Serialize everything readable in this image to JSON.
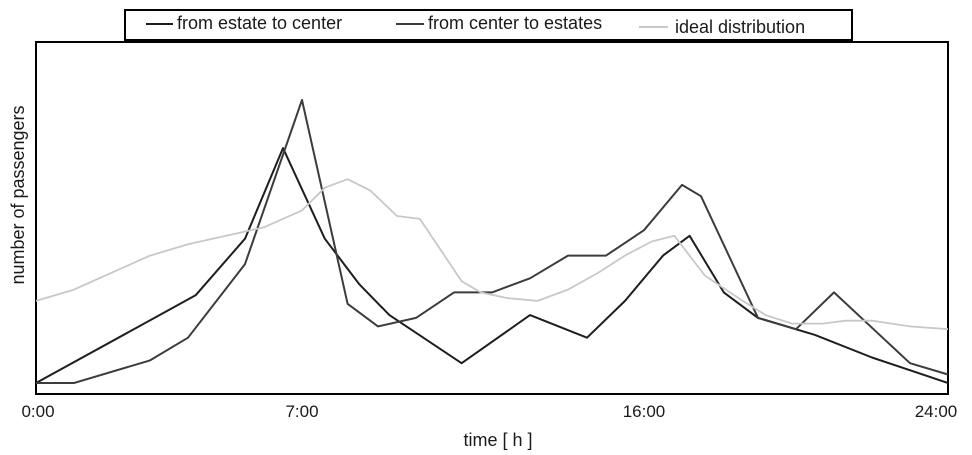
{
  "chart_data": {
    "type": "line",
    "x_unit": "hour",
    "xlim": [
      0,
      24
    ],
    "ylim": [
      0,
      100
    ],
    "y_ticks_shown": false,
    "grid": false,
    "legend_placement": "top-center",
    "xlabel": "time [ h ]",
    "ylabel": "number of passengers",
    "x_ticks": [
      {
        "value": 0,
        "label": "0:00"
      },
      {
        "value": 7,
        "label": "7:00"
      },
      {
        "value": 16,
        "label": "16:00"
      },
      {
        "value": 24,
        "label": "24:00"
      }
    ],
    "series": [
      {
        "name": "from estate to center",
        "color": "#1e1e1e",
        "x": [
          0,
          4.2,
          5.5,
          6.5,
          7.6,
          8.5,
          9.3,
          11.2,
          13,
          14.5,
          15.5,
          16.5,
          17.2,
          18.1,
          19,
          20.5,
          22,
          24
        ],
        "y": [
          0,
          31,
          51,
          83,
          51,
          35,
          24,
          7,
          24,
          16,
          29,
          45,
          52,
          32,
          23,
          17,
          9,
          0
        ]
      },
      {
        "name": "from center to estates",
        "color": "#3c3c3c",
        "x": [
          0,
          1,
          3,
          4,
          5.5,
          7,
          8.2,
          9,
          10,
          11,
          12,
          13,
          14,
          15,
          16,
          17,
          17.5,
          19,
          20,
          21,
          23,
          24
        ],
        "y": [
          0,
          0,
          8,
          16,
          42,
          100,
          28,
          20,
          23,
          32,
          32,
          37,
          45,
          45,
          54,
          70,
          66,
          23,
          19,
          32,
          7,
          3
        ]
      },
      {
        "name": "ideal distribution",
        "color": "#c8c8c8",
        "x": [
          0,
          1,
          2,
          3,
          4,
          5,
          6,
          7,
          7.6,
          8.2,
          8.8,
          9.5,
          10.1,
          10.7,
          11.2,
          11.7,
          12.4,
          13.2,
          14,
          14.8,
          15.5,
          16.2,
          16.8,
          17.6,
          18.6,
          19.2,
          19.9,
          20.7,
          21.3,
          22,
          23,
          24
        ],
        "y": [
          29,
          33,
          39,
          45,
          49,
          52,
          55,
          61,
          69,
          72,
          68,
          59,
          58,
          46,
          36,
          32,
          30,
          29,
          33,
          39,
          45,
          50,
          52,
          38,
          29,
          24,
          21,
          21,
          22,
          22,
          20,
          19
        ]
      }
    ]
  }
}
